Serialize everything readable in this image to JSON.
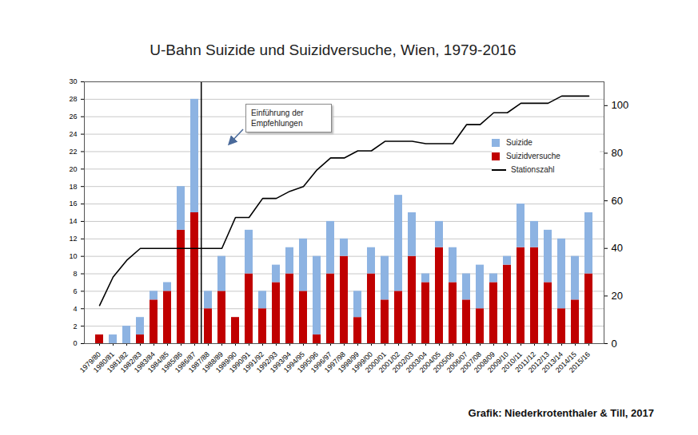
{
  "chart_data": {
    "type": "bar",
    "title": "U-Bahn Suizide und Suizidversuche, Wien, 1979-2016",
    "caption": "Grafik: Niederkrotenthaler & Till, 2017",
    "categories": [
      "1979/80",
      "1980/81",
      "1981/82",
      "1982/83",
      "1983/84",
      "1984/85",
      "1985/86",
      "1986/87",
      "1987/88",
      "1988/89",
      "1989/90",
      "1990/91",
      "1991/92",
      "1992/93",
      "1993/94",
      "1994/95",
      "1995/96",
      "1996/97",
      "1997/98",
      "1998/99",
      "1999/00",
      "2000/01",
      "2001/02",
      "2002/03",
      "2003/04",
      "2004/05",
      "2005/06",
      "2006/07",
      "2007/08",
      "2008/09",
      "2009/10",
      "2010/11",
      "2011/12",
      "2012/13",
      "2013/14",
      "2014/15",
      "2015/16"
    ],
    "series": [
      {
        "name": "Suizide",
        "color": "#8db3e2",
        "values": [
          0,
          1,
          2,
          2,
          1,
          1,
          5,
          13,
          2,
          4,
          0,
          5,
          2,
          2,
          3,
          6,
          9,
          6,
          2,
          3,
          3,
          5,
          11,
          5,
          1,
          3,
          4,
          3,
          5,
          1,
          1,
          5,
          3,
          6,
          8,
          5,
          7
        ]
      },
      {
        "name": "Suizidversuche",
        "color": "#c00000",
        "values": [
          1,
          0,
          0,
          1,
          5,
          6,
          13,
          15,
          4,
          6,
          3,
          8,
          4,
          7,
          8,
          6,
          1,
          8,
          10,
          3,
          8,
          5,
          6,
          10,
          7,
          11,
          7,
          5,
          4,
          7,
          9,
          11,
          11,
          7,
          4,
          5,
          8
        ]
      },
      {
        "name": "Stationszahl",
        "color": "#000000",
        "type": "line",
        "axis": "y2",
        "values": [
          16,
          28,
          35,
          40,
          40,
          40,
          40,
          40,
          40,
          40,
          53,
          53,
          61,
          61,
          64,
          66,
          73,
          78,
          78,
          81,
          81,
          85,
          85,
          85,
          84,
          84,
          84,
          92,
          92,
          97,
          97,
          101,
          101,
          101,
          104,
          104,
          104
        ]
      }
    ],
    "stacked": true,
    "ylim": [
      0,
      30
    ],
    "yticks": [
      0,
      2,
      4,
      6,
      8,
      10,
      12,
      14,
      16,
      18,
      20,
      22,
      24,
      26,
      28,
      30
    ],
    "y2lim": [
      0,
      110
    ],
    "y2ticks": [
      0,
      20,
      40,
      60,
      80,
      100
    ],
    "grid": true,
    "legend": "right",
    "annotations": [
      {
        "x": "1987/88",
        "text": "Einführung der Empfehlungen"
      }
    ]
  }
}
